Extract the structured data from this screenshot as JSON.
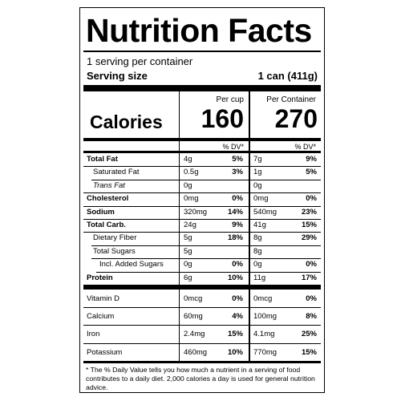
{
  "title": "Nutrition Facts",
  "servings_per_container": "1 serving per container",
  "serving_size_label": "Serving size",
  "serving_size_value": "1 can (411g)",
  "columns": {
    "per_cup": "Per cup",
    "per_container": "Per Container",
    "dv": "% DV*"
  },
  "calories": {
    "label": "Calories",
    "per_cup": "160",
    "per_container": "270"
  },
  "nutrients": [
    {
      "name": "Total Fat",
      "cup_amt": "4g",
      "cup_dv": "5%",
      "cont_amt": "7g",
      "cont_dv": "9%"
    },
    {
      "name": "Saturated Fat",
      "cup_amt": "0.5g",
      "cup_dv": "3%",
      "cont_amt": "1g",
      "cont_dv": "5%"
    },
    {
      "name": "Trans Fat",
      "cup_amt": "0g",
      "cup_dv": "",
      "cont_amt": "0g",
      "cont_dv": ""
    },
    {
      "name": "Cholesterol",
      "cup_amt": "0mg",
      "cup_dv": "0%",
      "cont_amt": "0mg",
      "cont_dv": "0%"
    },
    {
      "name": "Sodium",
      "cup_amt": "320mg",
      "cup_dv": "14%",
      "cont_amt": "540mg",
      "cont_dv": "23%"
    },
    {
      "name": "Total Carb.",
      "cup_amt": "24g",
      "cup_dv": "9%",
      "cont_amt": "41g",
      "cont_dv": "15%"
    },
    {
      "name": "Dietary Fiber",
      "cup_amt": "5g",
      "cup_dv": "18%",
      "cont_amt": "8g",
      "cont_dv": "29%"
    },
    {
      "name": "Total Sugars",
      "cup_amt": "5g",
      "cup_dv": "",
      "cont_amt": "8g",
      "cont_dv": ""
    },
    {
      "name": "Incl. Added Sugars",
      "cup_amt": "0g",
      "cup_dv": "0%",
      "cont_amt": "0g",
      "cont_dv": "0%"
    },
    {
      "name": "Protein",
      "cup_amt": "6g",
      "cup_dv": "10%",
      "cont_amt": "11g",
      "cont_dv": "17%"
    }
  ],
  "vitamins": [
    {
      "name": "Vitamin D",
      "cup_amt": "0mcg",
      "cup_dv": "0%",
      "cont_amt": "0mcg",
      "cont_dv": "0%"
    },
    {
      "name": "Calcium",
      "cup_amt": "60mg",
      "cup_dv": "4%",
      "cont_amt": "100mg",
      "cont_dv": "8%"
    },
    {
      "name": "Iron",
      "cup_amt": "2.4mg",
      "cup_dv": "15%",
      "cont_amt": "4.1mg",
      "cont_dv": "25%"
    },
    {
      "name": "Potassium",
      "cup_amt": "460mg",
      "cup_dv": "10%",
      "cont_amt": "770mg",
      "cont_dv": "15%"
    }
  ],
  "footnote": "* The % Daily Value tells you how much a nutrient in a serving of food contributes to a daily diet. 2,000 calories a day is used for general nutrition advice."
}
